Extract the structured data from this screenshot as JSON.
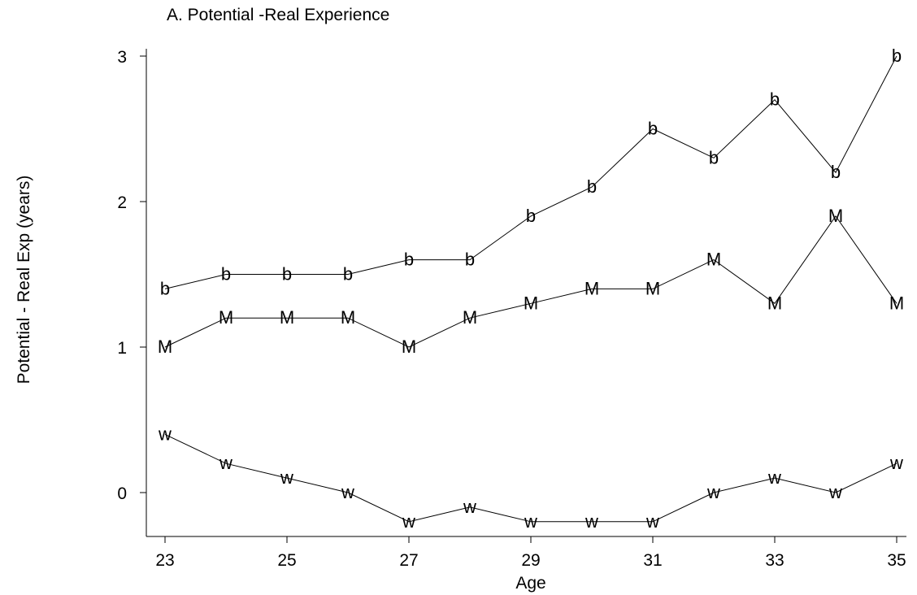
{
  "chart_data": {
    "type": "line",
    "title": "A. Potential -Real Experience",
    "xlabel": "Age",
    "ylabel": "Potential - Real Exp (years)",
    "xlim": [
      23,
      35
    ],
    "ylim": [
      -0.3,
      3.1
    ],
    "xticks": [
      "23",
      "25",
      "27",
      "29",
      "31",
      "33",
      "35"
    ],
    "yticks": [
      "0",
      "1",
      "2",
      "3"
    ],
    "grid": false,
    "x": [
      23,
      24,
      25,
      26,
      27,
      28,
      29,
      30,
      31,
      32,
      33,
      34,
      35
    ],
    "series": [
      {
        "marker": "b",
        "values": [
          1.4,
          1.5,
          1.5,
          1.5,
          1.6,
          1.6,
          1.9,
          2.1,
          2.5,
          2.3,
          2.7,
          2.2,
          3.0
        ]
      },
      {
        "marker": "M",
        "values": [
          1.0,
          1.2,
          1.2,
          1.2,
          1.0,
          1.2,
          1.3,
          1.4,
          1.4,
          1.6,
          1.3,
          1.9,
          1.3
        ]
      },
      {
        "marker": "w",
        "values": [
          0.4,
          0.2,
          0.1,
          0.0,
          -0.2,
          -0.1,
          -0.2,
          -0.2,
          -0.2,
          0.0,
          0.1,
          0.0,
          0.2
        ]
      }
    ]
  }
}
